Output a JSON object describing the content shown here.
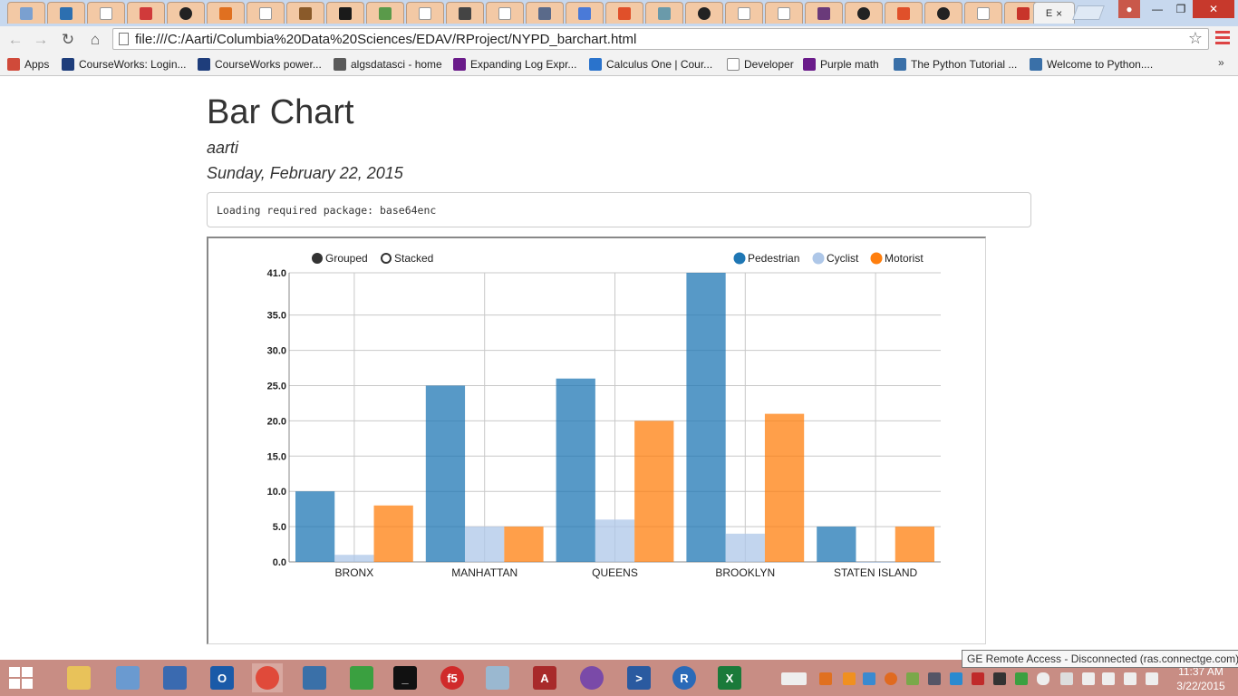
{
  "browser": {
    "active_tab_label": "E",
    "active_tab_close": "×",
    "url": "file:///C:/Aarti/Columbia%20Data%20Sciences/EDAV/RProject/NYPD_barchart.html",
    "bookmarks": [
      {
        "label": "Apps",
        "icon": "apps-grid-icon",
        "color": "#d04a3a"
      },
      {
        "label": "CourseWorks: Login...",
        "icon": "crown-icon",
        "color": "#1e3d7b"
      },
      {
        "label": "CourseWorks power...",
        "icon": "crown-icon",
        "color": "#1e3d7b"
      },
      {
        "label": "algsdatasci - home",
        "icon": "puzzle-icon",
        "color": "#5a5a5a"
      },
      {
        "label": "Expanding Log Expr...",
        "icon": "purplemath-icon",
        "color": "#6a1b8a"
      },
      {
        "label": "Calculus One | Cour...",
        "icon": "coursera-icon",
        "color": "#2a73cc"
      },
      {
        "label": "Developer",
        "icon": "page-icon",
        "color": "#888888"
      },
      {
        "label": "Purple math",
        "icon": "purplemath-icon",
        "color": "#6a1b8a"
      },
      {
        "label": "The Python Tutorial ...",
        "icon": "python-icon",
        "color": "#3a70a8"
      },
      {
        "label": "Welcome to Python....",
        "icon": "python-icon",
        "color": "#3a70a8"
      }
    ],
    "bookmarks_more": "»"
  },
  "document": {
    "title": "Bar Chart",
    "author": "aarti",
    "date": "Sunday, February 22, 2015",
    "output_text": "Loading required package: base64enc"
  },
  "chart_data": {
    "type": "bar",
    "mode_controls": [
      "Grouped",
      "Stacked"
    ],
    "selected_mode": "Grouped",
    "categories": [
      "BRONX",
      "MANHATTAN",
      "QUEENS",
      "BROOKLYN",
      "STATEN ISLAND"
    ],
    "series": [
      {
        "name": "Pedestrian",
        "color": "#1f77b4",
        "values": [
          10,
          25,
          26,
          41,
          5
        ]
      },
      {
        "name": "Cyclist",
        "color": "#aec7e8",
        "values": [
          1,
          5,
          6,
          4,
          0
        ]
      },
      {
        "name": "Motorist",
        "color": "#ff7f0e",
        "values": [
          8,
          5,
          20,
          21,
          5
        ]
      }
    ],
    "ylim": [
      0,
      41
    ],
    "yticks": [
      "0.0",
      "5.0",
      "10.0",
      "15.0",
      "20.0",
      "25.0",
      "30.0",
      "35.0",
      "41.0"
    ],
    "legend_position": "top-right",
    "grid": true
  },
  "taskbar": {
    "apps": [
      "file-explorer-icon",
      "network-icon",
      "remote-desktop-icon",
      "outlook-icon",
      "chrome-icon",
      "python-icon",
      "media-player-icon",
      "command-prompt-icon",
      "f5-vpn-icon",
      "notepad-icon",
      "access-icon",
      "github-icon",
      "powershell-icon",
      "r-icon",
      "excel-icon"
    ],
    "clock_time": "11:37 AM",
    "clock_date": "3/22/2015",
    "tooltip": "GE Remote Access - Disconnected (ras.connectge.com)"
  }
}
